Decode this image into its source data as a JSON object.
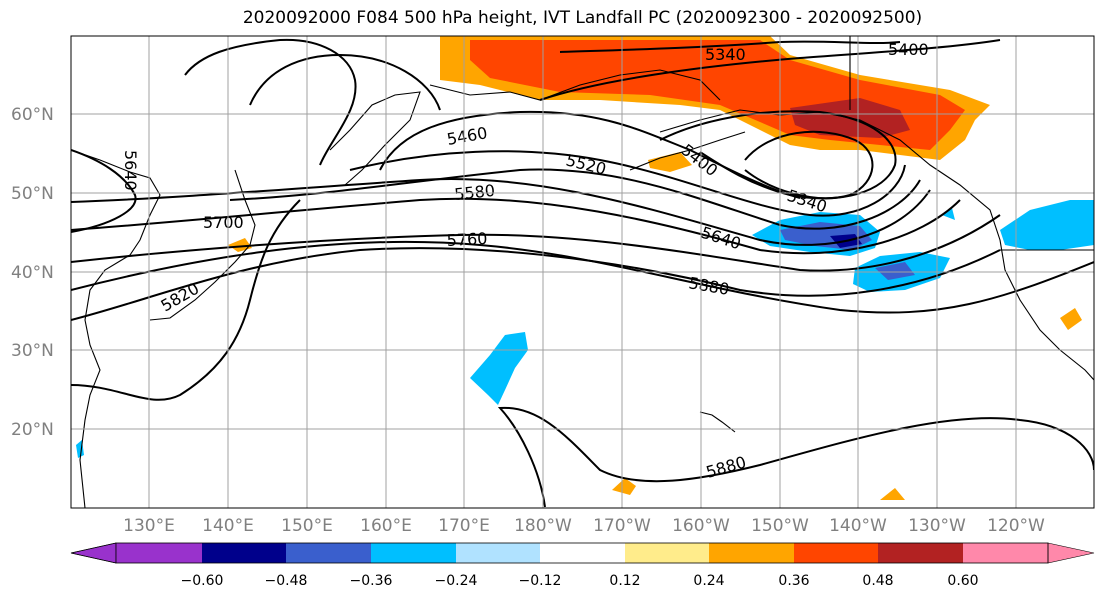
{
  "title": "2020092000 F084 500 hPa height, IVT Landfall PC (2020092300 - 2020092500)",
  "lat_labels": [
    "60°N",
    "50°N",
    "40°N",
    "30°N",
    "20°N"
  ],
  "lon_labels": [
    "130°E",
    "140°E",
    "150°E",
    "160°E",
    "170°E",
    "180°W",
    "170°W",
    "160°W",
    "150°W",
    "140°W",
    "130°W",
    "120°W"
  ],
  "contour_labels": [
    "5340",
    "5400",
    "5460",
    "5520",
    "5580",
    "5700",
    "5760",
    "5640",
    "5820",
    "5880",
    "5340",
    "5400",
    "5640",
    "5880"
  ],
  "colorbar": {
    "colors": [
      "#9932cc",
      "#00008b",
      "#3a5fcd",
      "#00bfff",
      "#b0e2ff",
      "#ffffff",
      "#ffec8b",
      "#ffa500",
      "#ff4500",
      "#b22222",
      "#ff88aa"
    ],
    "ticks": [
      "−0.60",
      "−0.48",
      "−0.36",
      "−0.24",
      "−0.12",
      "0.12",
      "0.24",
      "0.36",
      "0.48",
      "0.60"
    ]
  },
  "colors": {
    "positive_strong": "#ff4500",
    "positive_mid": "#ffa500",
    "positive_max": "#b22222",
    "negative_mid": "#00bfff",
    "negative_strong": "#3a5fcd",
    "negative_max": "#00008b",
    "grid": "#a0a0a0"
  }
}
